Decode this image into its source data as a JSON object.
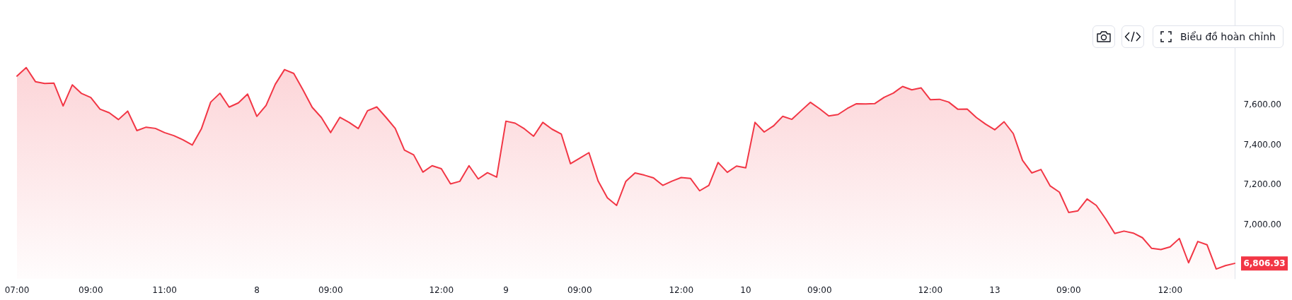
{
  "chart_data": {
    "type": "area",
    "categories": [
      "07:00",
      null,
      null,
      null,
      null,
      null,
      null,
      null,
      "09:00",
      null,
      null,
      null,
      null,
      null,
      null,
      null,
      "11:00",
      null,
      null,
      null,
      null,
      null,
      null,
      null,
      null,
      null,
      "8",
      null,
      null,
      null,
      null,
      null,
      null,
      null,
      "09:00",
      null,
      null,
      null,
      null,
      null,
      null,
      null,
      null,
      null,
      null,
      null,
      "12:00",
      null,
      null,
      null,
      null,
      null,
      null,
      "9",
      null,
      null,
      null,
      null,
      null,
      null,
      null,
      "09:00",
      null,
      null,
      null,
      null,
      null,
      null,
      null,
      null,
      null,
      null,
      "12:00",
      null,
      null,
      null,
      null,
      null,
      null,
      "10",
      null,
      null,
      null,
      null,
      null,
      null,
      null,
      "09:00",
      null,
      null,
      null,
      null,
      null,
      null,
      null,
      null,
      null,
      null,
      null,
      "12:00",
      null,
      null,
      null,
      null,
      null,
      null,
      "13",
      null,
      null,
      null,
      null,
      null,
      null,
      null,
      "09:00",
      null,
      null,
      null,
      null,
      null,
      null,
      null,
      null,
      null,
      null,
      "12:00",
      null,
      null,
      null,
      null,
      null,
      null,
      null
    ],
    "series": [
      {
        "color": "#f23645",
        "values": [
          7741,
          7783,
          7713,
          7704,
          7706,
          7592,
          7697,
          7654,
          7634,
          7576,
          7558,
          7524,
          7566,
          7469,
          7486,
          7480,
          7459,
          7444,
          7423,
          7397,
          7479,
          7611,
          7655,
          7586,
          7607,
          7651,
          7540,
          7594,
          7700,
          7773,
          7754,
          7672,
          7585,
          7534,
          7459,
          7535,
          7510,
          7479,
          7568,
          7587,
          7535,
          7480,
          7372,
          7348,
          7262,
          7294,
          7279,
          7203,
          7216,
          7294,
          7228,
          7259,
          7237,
          7516,
          7506,
          7478,
          7441,
          7510,
          7476,
          7452,
          7304,
          7331,
          7359,
          7217,
          7134,
          7096,
          7216,
          7258,
          7247,
          7233,
          7196,
          7217,
          7235,
          7231,
          7169,
          7196,
          7310,
          7261,
          7292,
          7283,
          7510,
          7462,
          7492,
          7540,
          7525,
          7568,
          7610,
          7578,
          7542,
          7549,
          7579,
          7603,
          7602,
          7604,
          7635,
          7656,
          7689,
          7672,
          7682,
          7623,
          7625,
          7611,
          7575,
          7576,
          7534,
          7501,
          7473,
          7513,
          7454,
          7321,
          7258,
          7275,
          7193,
          7162,
          7061,
          7069,
          7128,
          7096,
          7030,
          6956,
          6968,
          6958,
          6935,
          6882,
          6876,
          6889,
          6931,
          6810,
          6916,
          6900,
          6779,
          6796,
          6806.93
        ]
      }
    ],
    "ylim": [
      6730,
      8120
    ],
    "yticks": [
      {
        "value": 7000,
        "label": "7,000.00"
      },
      {
        "value": 7200,
        "label": "7,200.00"
      },
      {
        "value": 7400,
        "label": "7,400.00"
      },
      {
        "value": 7600,
        "label": "7,600.00"
      }
    ],
    "grid": false,
    "marker": "none",
    "line_style": "solid",
    "annotations": [
      "Biểu đồ hoàn chỉnh",
      "6,806.93"
    ]
  }
}
